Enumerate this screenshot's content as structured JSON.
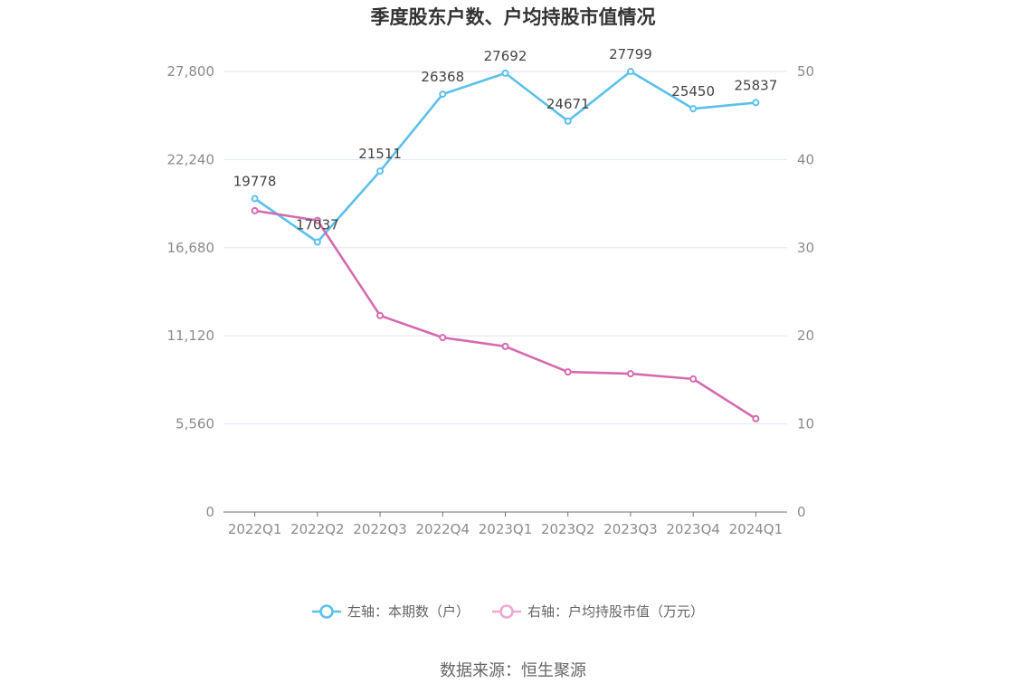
{
  "chart_data": {
    "type": "line",
    "title": "季度股东户数、户均持股市值情况",
    "categories": [
      "2022Q1",
      "2022Q2",
      "2022Q3",
      "2022Q4",
      "2023Q1",
      "2023Q2",
      "2023Q3",
      "2023Q4",
      "2024Q1"
    ],
    "y_left": {
      "ticks": [
        "0",
        "5,560",
        "11,120",
        "16,680",
        "22,240",
        "27,800"
      ],
      "ylim": [
        0,
        27800
      ]
    },
    "y_right": {
      "ticks": [
        "0",
        "10",
        "20",
        "30",
        "40",
        "50"
      ],
      "ylim": [
        0,
        50
      ]
    },
    "grid": true,
    "legend_position": "bottom",
    "series": [
      {
        "name": "左轴：本期数（户）",
        "axis": "left",
        "color": "#5bc0eb",
        "values": [
          19778,
          17037,
          21511,
          26368,
          27692,
          24671,
          27799,
          25450,
          25837
        ],
        "labels": [
          "19778",
          "17037",
          "21511",
          "26368",
          "27692",
          "24671",
          "27799",
          "25450",
          "25837"
        ]
      },
      {
        "name": "右轴：户均持股市值（万元）",
        "axis": "right",
        "color": "#d56aae",
        "legend_color": "#f0a8d0",
        "values": [
          34.2,
          33.1,
          22.3,
          19.8,
          18.8,
          15.9,
          15.7,
          15.1,
          10.6
        ]
      }
    ]
  },
  "source": "数据来源：恒生聚源"
}
